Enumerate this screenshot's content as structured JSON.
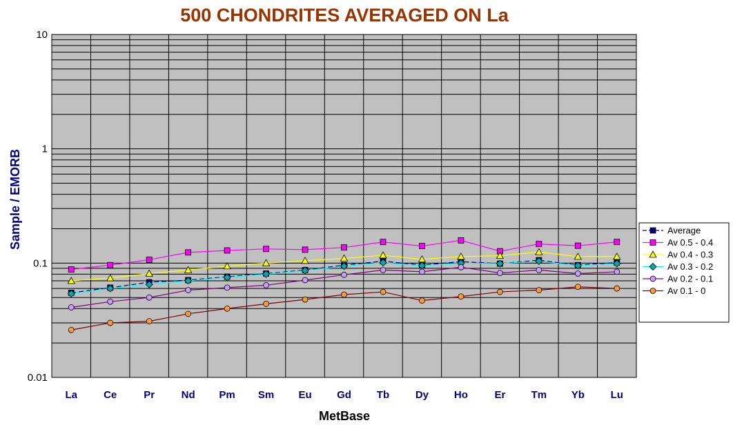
{
  "chart_data": {
    "type": "line",
    "title": "500 CHONDRITES AVERAGED ON La",
    "xlabel": "MetBase",
    "ylabel": "Sample / EMORB",
    "yscale": "log",
    "ylim": [
      0.01,
      10
    ],
    "yticks": [
      "0.01",
      "0.1",
      "1",
      "10"
    ],
    "grid": true,
    "legend_position": "right",
    "categories": [
      "La",
      "Ce",
      "Pr",
      "Nd",
      "Pm",
      "Sm",
      "Eu",
      "Gd",
      "Tb",
      "Dy",
      "Ho",
      "Er",
      "Tm",
      "Yb",
      "Lu"
    ],
    "colors": {
      "plot_background": "#c0c0c0",
      "title": "#993300",
      "xlabel": "#000000",
      "ylabel": "#000080",
      "category_labels": "#000080",
      "grid": "#000000"
    },
    "series": [
      {
        "name": "Average",
        "color": "#000080",
        "marker": "square",
        "marker_fill": "#000080",
        "line_style": "dashed",
        "values": [
          0.055,
          0.061,
          0.068,
          0.071,
          0.076,
          0.081,
          0.087,
          0.096,
          0.104,
          0.096,
          0.103,
          0.099,
          0.106,
          0.096,
          0.101
        ]
      },
      {
        "name": "Av 0.5 - 0.4",
        "color": "#ff00ff",
        "marker": "square",
        "marker_fill": "#ff00ff",
        "line_style": "solid",
        "values": [
          0.088,
          0.096,
          0.107,
          0.124,
          0.129,
          0.133,
          0.131,
          0.137,
          0.153,
          0.141,
          0.158,
          0.127,
          0.147,
          0.142,
          0.153
        ]
      },
      {
        "name": "Av 0.4  - 0.3",
        "color": "#ffff00",
        "marker": "triangle",
        "marker_fill": "#ffff00",
        "line_style": "solid",
        "values": [
          0.07,
          0.074,
          0.081,
          0.087,
          0.094,
          0.1,
          0.105,
          0.11,
          0.117,
          0.108,
          0.114,
          0.116,
          0.125,
          0.114,
          0.114
        ]
      },
      {
        "name": "Av 0.3  - 0.2",
        "color": "#00ffff",
        "marker": "diamond",
        "marker_fill": "#00aaaa",
        "line_style": "solid",
        "values": [
          0.054,
          0.06,
          0.065,
          0.07,
          0.075,
          0.08,
          0.086,
          0.094,
          0.101,
          0.095,
          0.1,
          0.099,
          0.104,
          0.095,
          0.099
        ]
      },
      {
        "name": "Av 0.2 - 0.1",
        "color": "#800080",
        "marker": "circle",
        "marker_fill": "#cc99ff",
        "line_style": "solid",
        "values": [
          0.041,
          0.046,
          0.05,
          0.058,
          0.061,
          0.064,
          0.071,
          0.079,
          0.087,
          0.084,
          0.092,
          0.082,
          0.087,
          0.081,
          0.084
        ]
      },
      {
        "name": "Av 0.1 - 0",
        "color": "#800000",
        "marker": "circle",
        "marker_fill": "#ff9933",
        "line_style": "solid",
        "values": [
          0.026,
          0.03,
          0.031,
          0.036,
          0.04,
          0.044,
          0.048,
          0.053,
          0.056,
          0.047,
          0.051,
          0.056,
          0.058,
          0.062,
          0.06
        ]
      }
    ]
  }
}
